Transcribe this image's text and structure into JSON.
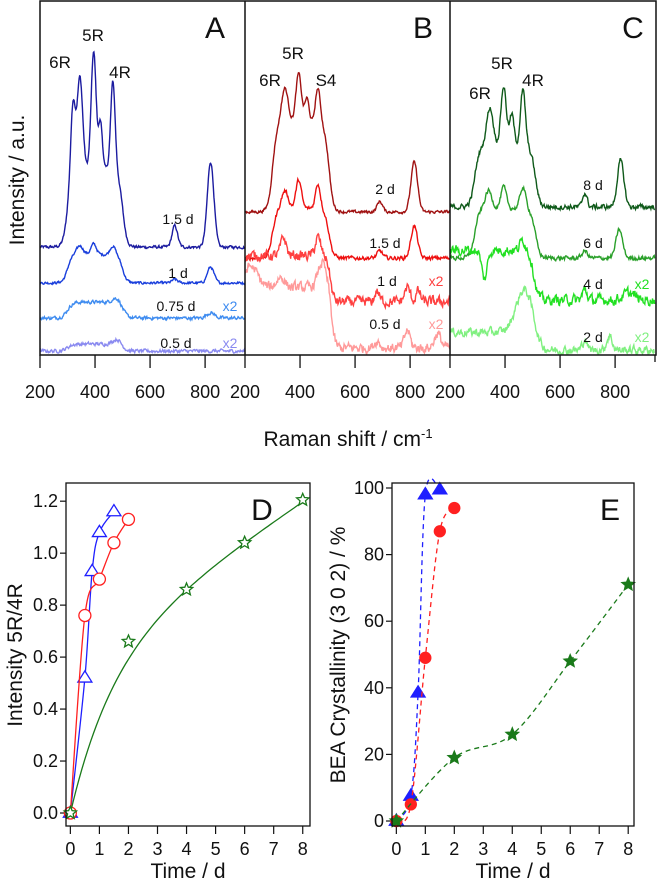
{
  "figure": {
    "top_xlabel": "Raman shift / cm",
    "top_xlabel_sup": "-1",
    "top_ylabel": "Intensity / a.u."
  },
  "chart_data": [
    {
      "type": "line",
      "panel": "A",
      "title": "A",
      "xlim": [
        200,
        945
      ],
      "xticks": [
        200,
        400,
        600,
        800
      ],
      "ylim": [
        0,
        100
      ],
      "peak_labels": [
        "6R",
        "5R",
        "4R"
      ],
      "series": [
        {
          "name": "1.5 d",
          "color": "#1c1ca0",
          "scale_label": "",
          "baseline": 30.4,
          "band": [
            300,
            500,
            22,
            8
          ],
          "peaks": [
            [
              320,
              20,
              8
            ],
            [
              345,
              26,
              10
            ],
            [
              395,
              33,
              9
            ],
            [
              420,
              13,
              7
            ],
            [
              465,
              25,
              8
            ],
            [
              690,
              6,
              10
            ],
            [
              820,
              24,
              12
            ]
          ],
          "noise": 0.35
        },
        {
          "name": "1 d",
          "color": "#1a3fdc",
          "scale_label": "",
          "baseline": 20.3,
          "band": [
            300,
            500,
            8,
            8
          ],
          "peaks": [
            [
              345,
              2.5,
              12
            ],
            [
              395,
              3,
              10
            ],
            [
              465,
              2.5,
              10
            ],
            [
              690,
              1,
              10
            ],
            [
              820,
              4.5,
              12
            ]
          ],
          "noise": 0.3
        },
        {
          "name": "0.75 d",
          "color": "#3f8cf0",
          "scale_label": "x2",
          "baseline": 10.4,
          "band": [
            300,
            500,
            4.5,
            10
          ],
          "peaks": [
            [
              480,
              1.5,
              15
            ],
            [
              820,
              1.5,
              15
            ]
          ],
          "noise": 0.4
        },
        {
          "name": "0.5 d",
          "color": "#8a8af0",
          "scale_label": "x2",
          "baseline": 1.1,
          "band": [
            300,
            500,
            2,
            10
          ],
          "peaks": [
            [
              480,
              1.5,
              15
            ]
          ],
          "noise": 0.4
        }
      ]
    },
    {
      "type": "line",
      "panel": "B",
      "title": "B",
      "xlim": [
        200,
        945
      ],
      "xticks": [
        200,
        400,
        600,
        800
      ],
      "ylim": [
        0,
        100
      ],
      "peak_labels": [
        "6R",
        "5R",
        "S4"
      ],
      "series": [
        {
          "name": "2 d",
          "color": "#a01212",
          "scale_label": "",
          "baseline": 40.3,
          "band": [
            300,
            505,
            25,
            8
          ],
          "peaks": [
            [
              345,
              10,
              12
            ],
            [
              395,
              14,
              10
            ],
            [
              425,
              7,
              8
            ],
            [
              465,
              10,
              9
            ],
            [
              690,
              3,
              10
            ],
            [
              815,
              14,
              12
            ]
          ],
          "noise": 0.35
        },
        {
          "name": "1.5 d",
          "color": "#ee1010",
          "scale_label": "",
          "baseline": 27.3,
          "band": [
            300,
            505,
            14,
            8
          ],
          "peaks": [
            [
              345,
              5,
              12
            ],
            [
              395,
              8,
              10
            ],
            [
              465,
              7,
              9
            ],
            [
              690,
              2,
              10
            ],
            [
              815,
              9,
              12
            ]
          ],
          "noise": 0.45
        },
        {
          "name": "1 d",
          "color": "#ff4040",
          "scale_label": "x2",
          "baseline": 15,
          "band": [
            150,
            510,
            13,
            6
          ],
          "peaks": [
            [
              340,
              5,
              10
            ],
            [
              465,
              5,
              10
            ],
            [
              680,
              3,
              8
            ],
            [
              790,
              4,
              10
            ],
            [
              830,
              3,
              8
            ]
          ],
          "noise": 1.2
        },
        {
          "name": "0.5 d",
          "color": "#ff9a9a",
          "scale_label": "x2",
          "baseline": 2,
          "band": [
            150,
            515,
            17,
            6
          ],
          "peaks": [
            [
              220,
              6,
              25
            ],
            [
              330,
              3,
              15
            ],
            [
              480,
              7,
              15
            ],
            [
              680,
              2,
              10
            ],
            [
              790,
              5,
              10
            ],
            [
              900,
              4,
              12
            ]
          ],
          "noise": 1.2
        }
      ]
    },
    {
      "type": "line",
      "panel": "C",
      "title": "C",
      "xlim": [
        200,
        945
      ],
      "xticks": [
        200,
        400,
        600,
        800
      ],
      "ylim": [
        0,
        100
      ],
      "peak_labels": [
        "6R",
        "5R",
        "4R"
      ],
      "series": [
        {
          "name": "8 d",
          "color": "#0f5a1a",
          "scale_label": "",
          "baseline": 41.7,
          "band": [
            290,
            510,
            17,
            8
          ],
          "peaks": [
            [
              345,
              11,
              12
            ],
            [
              395,
              17,
              10
            ],
            [
              425,
              9,
              8
            ],
            [
              465,
              16,
              9
            ],
            [
              690,
              4,
              8
            ],
            [
              820,
              13,
              12
            ]
          ],
          "noise": 0.6
        },
        {
          "name": "6 d",
          "color": "#2aa02a",
          "scale_label": "",
          "baseline": 27.3,
          "band": [
            290,
            510,
            14,
            8
          ],
          "peaks": [
            [
              340,
              5,
              12
            ],
            [
              395,
              6,
              10
            ],
            [
              465,
              6,
              10
            ],
            [
              690,
              2,
              10
            ],
            [
              815,
              8,
              12
            ]
          ],
          "noise": 0.5
        },
        {
          "name": "4 d",
          "color": "#22e022",
          "scale_label": "x2",
          "baseline": 15.5,
          "band": [
            150,
            505,
            14,
            8
          ],
          "peaks": [
            [
              325,
              -8,
              10
            ],
            [
              465,
              3,
              10
            ],
            [
              690,
              3,
              8
            ],
            [
              850,
              2,
              20
            ]
          ],
          "noise": 1.2
        },
        {
          "name": "2 d",
          "color": "#80f080",
          "scale_label": "x2",
          "baseline": 1.4,
          "band": [
            150,
            510,
            5,
            8
          ],
          "peaks": [
            [
              470,
              12,
              30
            ],
            [
              690,
              3,
              8
            ],
            [
              780,
              4,
              10
            ]
          ],
          "noise": 1.0
        }
      ]
    },
    {
      "type": "line",
      "panel": "D",
      "title": "D",
      "xlabel": "Time / d",
      "ylabel": "Intensity 5R/4R",
      "xlim": [
        -0.15,
        8.25
      ],
      "ylim": [
        -0.05,
        1.27
      ],
      "xticks": [
        0,
        1,
        2,
        3,
        4,
        5,
        6,
        7,
        8
      ],
      "yticks": [
        "0.0",
        "0.2",
        "0.4",
        "0.6",
        "0.8",
        "1.0",
        "1.2"
      ],
      "series": [
        {
          "name": "blue",
          "color": "#1f1fff",
          "marker": "triangle",
          "filled": false,
          "line": "solid",
          "x": [
            0,
            0.5,
            0.75,
            1,
            1.5
          ],
          "y": [
            0,
            0.52,
            0.93,
            1.08,
            1.16
          ]
        },
        {
          "name": "red",
          "color": "#ff2020",
          "marker": "circle",
          "filled": false,
          "line": "solid",
          "x": [
            0,
            0.5,
            1,
            1.5,
            2
          ],
          "y": [
            0,
            0.76,
            0.9,
            1.04,
            1.13
          ]
        },
        {
          "name": "green",
          "color": "#1a7a1a",
          "marker": "star",
          "filled": false,
          "line": "fit",
          "x": [
            0,
            2,
            4,
            6,
            8
          ],
          "y": [
            0,
            0.66,
            0.86,
            1.04,
            1.205
          ],
          "fit": {
            "a": 0.6,
            "b": 1.5,
            "c": 0.075
          }
        }
      ]
    },
    {
      "type": "line",
      "panel": "E",
      "title": "E",
      "xlabel": "Time / d",
      "ylabel": "BEA Crystallinity (3 0 2) / %",
      "xlim": [
        -0.15,
        8.2
      ],
      "ylim": [
        -1.5,
        101.5
      ],
      "xticks": [
        0,
        1,
        2,
        3,
        4,
        5,
        6,
        7,
        8
      ],
      "yticks": [
        "0",
        "20",
        "40",
        "60",
        "80",
        "100"
      ],
      "series": [
        {
          "name": "blue",
          "color": "#1f1fff",
          "marker": "triangle",
          "filled": true,
          "line": "dashed",
          "x": [
            0,
            0.5,
            0.75,
            1,
            1.5
          ],
          "y": [
            0,
            7.5,
            38.5,
            98,
            99.5
          ]
        },
        {
          "name": "red",
          "color": "#ff2020",
          "marker": "circle",
          "filled": true,
          "line": "dashed",
          "x": [
            0,
            0.5,
            1,
            1.5,
            2
          ],
          "y": [
            0,
            5,
            49,
            87,
            94
          ]
        },
        {
          "name": "green",
          "color": "#1a7a1a",
          "marker": "star",
          "filled": true,
          "line": "dashed",
          "x": [
            0,
            2,
            4,
            6,
            8
          ],
          "y": [
            0,
            19,
            26,
            48,
            71
          ]
        }
      ]
    }
  ]
}
